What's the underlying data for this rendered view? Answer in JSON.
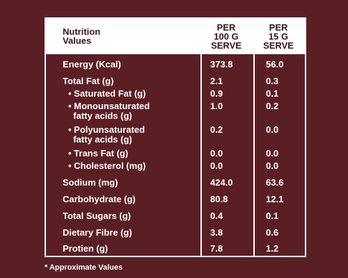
{
  "header": {
    "nutrition": "Nutrition\nValues",
    "col1": "PER\n100 G\nSERVE",
    "col2": "PER\n15 G\nSERVE"
  },
  "rows": [
    {
      "label": "Energy (Kcal)",
      "v1": "373.8",
      "v2": "56.0"
    },
    {
      "label": "Total Fat (g)",
      "v1": "2.1",
      "v2": "0.3"
    },
    {
      "label": "• Saturated Fat (g)",
      "v1": "0.9",
      "v2": "0.1"
    },
    {
      "label": "• Monounsaturated\n  fatty acids (g)",
      "v1": "1.0",
      "v2": "0.2"
    },
    {
      "label": "• Polyunsaturated\n  fatty acids (g)",
      "v1": "0.2",
      "v2": "0.0"
    },
    {
      "label": "• Trans Fat (g)",
      "v1": "0.0",
      "v2": "0.0"
    },
    {
      "label": "• Cholesterol (mg)",
      "v1": "0.0",
      "v2": "0.0"
    },
    {
      "label": "Sodium (mg)",
      "v1": "424.0",
      "v2": "63.6"
    },
    {
      "label": "Carbohydrate (g)",
      "v1": "80.8",
      "v2": "12.1"
    },
    {
      "label": "Total Sugars (g)",
      "v1": "0.4",
      "v2": "0.1"
    },
    {
      "label": "Dietary Fibre (g)",
      "v1": "3.8",
      "v2": "0.6"
    },
    {
      "label": "Protien (g)",
      "v1": "7.8",
      "v2": "1.2"
    }
  ],
  "footnote": "* Approximate Values",
  "colors": {
    "background": "#5a1f25",
    "header_bg": "#ffffff",
    "header_text": "#3a1418"
  }
}
